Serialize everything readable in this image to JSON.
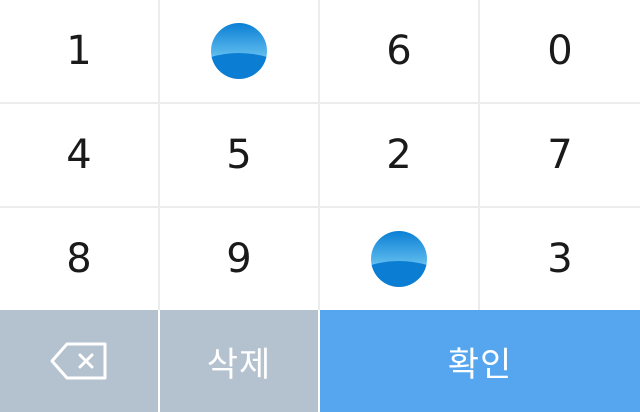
{
  "colors": {
    "divider": "#ececec",
    "digit_text": "#1a1a1a",
    "action_gray": "#b4c2cf",
    "action_blue": "#56a6ef",
    "action_text": "#ffffff"
  },
  "keypad": {
    "keys": [
      {
        "type": "digit",
        "label": "1"
      },
      {
        "type": "logo",
        "icon": "bank-logo-icon"
      },
      {
        "type": "digit",
        "label": "6"
      },
      {
        "type": "digit",
        "label": "0"
      },
      {
        "type": "digit",
        "label": "4"
      },
      {
        "type": "digit",
        "label": "5"
      },
      {
        "type": "digit",
        "label": "2"
      },
      {
        "type": "digit",
        "label": "7"
      },
      {
        "type": "digit",
        "label": "8"
      },
      {
        "type": "digit",
        "label": "9"
      },
      {
        "type": "logo",
        "icon": "bank-logo-icon"
      },
      {
        "type": "digit",
        "label": "3"
      }
    ],
    "actions": {
      "backspace_icon": "backspace-icon",
      "delete_label": "삭제",
      "confirm_label": "확인"
    }
  }
}
